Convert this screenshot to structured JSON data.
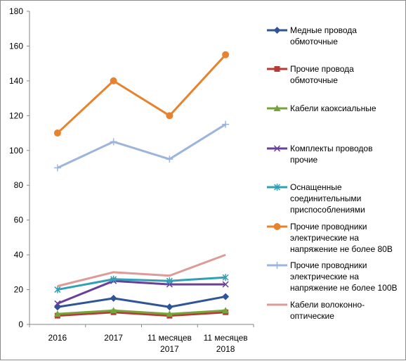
{
  "chart_data": {
    "type": "line",
    "categories": [
      [
        "2016"
      ],
      [
        "2017"
      ],
      [
        "11 месяцев",
        "2017"
      ],
      [
        "11 месяцев",
        "2018"
      ]
    ],
    "ylim": [
      0,
      180
    ],
    "yticks": [
      0,
      20,
      40,
      60,
      80,
      100,
      120,
      140,
      160,
      180
    ],
    "grid": false,
    "legend_position": "right",
    "series": [
      {
        "name": [
          "Медные провода",
          "обмоточные"
        ],
        "values": [
          10,
          15,
          10,
          16
        ],
        "color": "#2f5597",
        "marker": "diamond"
      },
      {
        "name": [
          "Прочие провода",
          "обмоточные"
        ],
        "values": [
          5,
          7,
          5,
          7
        ],
        "color": "#b53b36",
        "marker": "square"
      },
      {
        "name": [
          "Кабели каоксиальные"
        ],
        "values": [
          6,
          8,
          6,
          8
        ],
        "color": "#77a33c",
        "marker": "triangle"
      },
      {
        "name": [
          "Комплекты проводов",
          "прочие"
        ],
        "values": [
          12,
          25,
          23,
          23
        ],
        "color": "#6b3f99",
        "marker": "x"
      },
      {
        "name": [
          "Оснащенные",
          "соединительными",
          "приспособлениями"
        ],
        "values": [
          20,
          26,
          25,
          27
        ],
        "color": "#31a0b5",
        "marker": "star"
      },
      {
        "name": [
          "Прочие проводники",
          "электрические на",
          "напряжение не более 80В"
        ],
        "values": [
          110,
          140,
          120,
          155
        ],
        "color": "#e7832f",
        "marker": "circle"
      },
      {
        "name": [
          "Прочие проводники",
          "электрические на",
          "напряжение не более 100В"
        ],
        "values": [
          90,
          105,
          95,
          115
        ],
        "color": "#9db5dd",
        "marker": "plus"
      },
      {
        "name": [
          "Кабели волоконно-",
          "оптические"
        ],
        "values": [
          22,
          30,
          28,
          40
        ],
        "color": "#dc9a98",
        "marker": "none"
      }
    ]
  }
}
